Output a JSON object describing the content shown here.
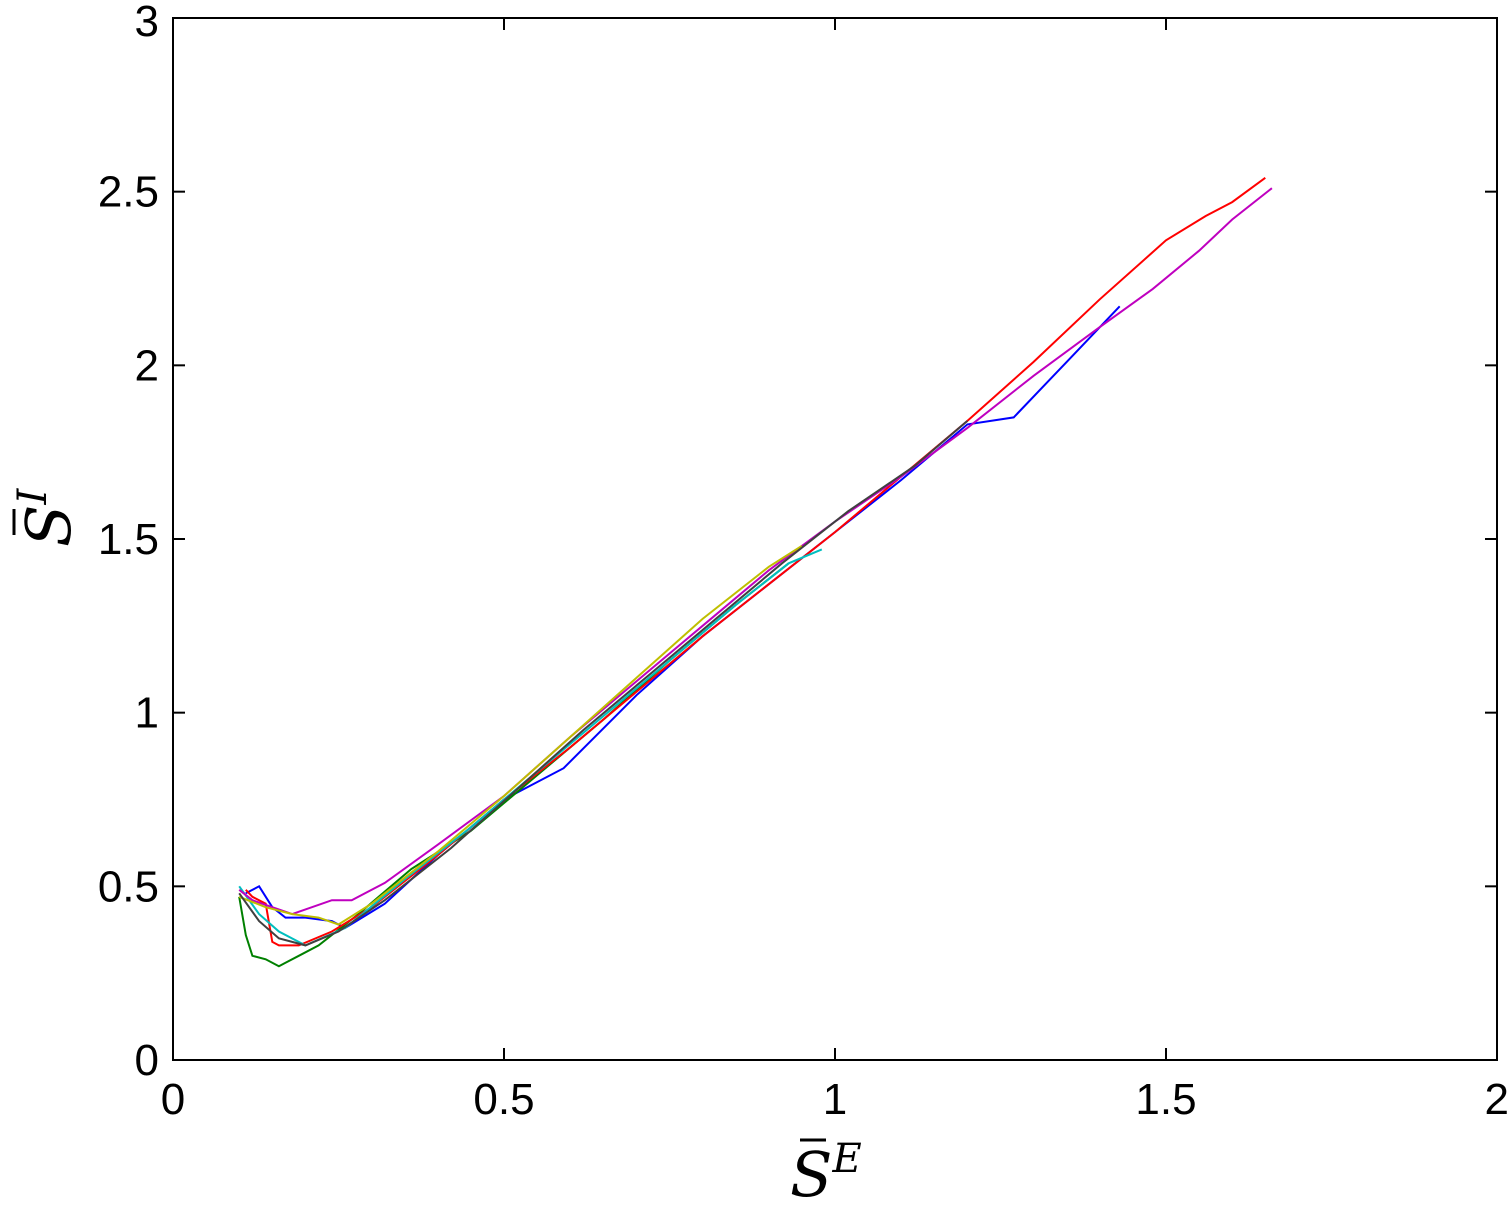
{
  "chart_data": {
    "type": "line",
    "xlabel": {
      "base": "S",
      "sup": "E"
    },
    "ylabel": {
      "base": "S",
      "sup": "I"
    },
    "xlim": [
      0,
      2
    ],
    "ylim": [
      0,
      3
    ],
    "xticks": [
      0,
      0.5,
      1,
      1.5,
      2
    ],
    "xtick_labels": [
      "0",
      "0.5",
      "1",
      "1.5",
      "2"
    ],
    "yticks": [
      0,
      0.5,
      1,
      1.5,
      2,
      2.5,
      3
    ],
    "ytick_labels": [
      "0",
      "0.5",
      "1",
      "1.5",
      "2",
      "2.5",
      "3"
    ],
    "grid": false,
    "legend": "none",
    "series": [
      {
        "color": "#0000ff",
        "x": [
          0.11,
          0.13,
          0.15,
          0.17,
          0.2,
          0.24,
          0.26,
          0.32,
          0.4,
          0.5,
          0.59,
          0.7,
          0.8,
          0.9,
          1.0,
          1.1,
          1.2,
          1.27,
          1.35,
          1.43
        ],
        "y": [
          0.48,
          0.5,
          0.44,
          0.41,
          0.41,
          0.4,
          0.38,
          0.45,
          0.59,
          0.75,
          0.84,
          1.05,
          1.22,
          1.37,
          1.52,
          1.67,
          1.83,
          1.85,
          2.01,
          2.17
        ]
      },
      {
        "color": "#008000",
        "x": [
          0.1,
          0.11,
          0.12,
          0.14,
          0.16,
          0.17,
          0.19,
          0.22,
          0.28,
          0.36,
          0.45,
          0.55,
          0.65,
          0.75,
          0.85,
          0.93
        ],
        "y": [
          0.47,
          0.36,
          0.3,
          0.29,
          0.27,
          0.28,
          0.3,
          0.33,
          0.42,
          0.55,
          0.66,
          0.82,
          0.98,
          1.15,
          1.31,
          1.43
        ]
      },
      {
        "color": "#ff0000",
        "x": [
          0.11,
          0.12,
          0.14,
          0.15,
          0.16,
          0.19,
          0.24,
          0.3,
          0.4,
          0.5,
          0.6,
          0.7,
          0.8,
          0.9,
          1.0,
          1.1,
          1.2,
          1.3,
          1.4,
          1.5,
          1.56,
          1.6,
          1.65
        ],
        "y": [
          0.49,
          0.47,
          0.45,
          0.34,
          0.33,
          0.33,
          0.37,
          0.44,
          0.59,
          0.75,
          0.9,
          1.06,
          1.22,
          1.37,
          1.52,
          1.68,
          1.84,
          2.01,
          2.19,
          2.36,
          2.43,
          2.47,
          2.54
        ]
      },
      {
        "color": "#00bfbf",
        "x": [
          0.1,
          0.13,
          0.16,
          0.2,
          0.26,
          0.35,
          0.45,
          0.55,
          0.65,
          0.75,
          0.85,
          0.93,
          0.98
        ],
        "y": [
          0.5,
          0.42,
          0.37,
          0.33,
          0.38,
          0.52,
          0.67,
          0.83,
          0.99,
          1.15,
          1.31,
          1.43,
          1.47
        ]
      },
      {
        "color": "#bf00bf",
        "x": [
          0.1,
          0.12,
          0.15,
          0.18,
          0.24,
          0.27,
          0.32,
          0.4,
          0.5,
          0.6,
          0.7,
          0.8,
          0.9,
          1.0,
          1.1,
          1.2,
          1.3,
          1.4,
          1.48,
          1.55,
          1.6,
          1.66
        ],
        "y": [
          0.49,
          0.46,
          0.44,
          0.42,
          0.46,
          0.46,
          0.51,
          0.62,
          0.76,
          0.93,
          1.09,
          1.25,
          1.41,
          1.55,
          1.68,
          1.82,
          1.97,
          2.11,
          2.22,
          2.33,
          2.42,
          2.51
        ]
      },
      {
        "color": "#bfbf00",
        "x": [
          0.1,
          0.14,
          0.18,
          0.22,
          0.25,
          0.3,
          0.4,
          0.5,
          0.6,
          0.7,
          0.8,
          0.9,
          0.95
        ],
        "y": [
          0.47,
          0.44,
          0.42,
          0.41,
          0.39,
          0.45,
          0.6,
          0.76,
          0.93,
          1.1,
          1.27,
          1.42,
          1.48
        ]
      },
      {
        "color": "#404040",
        "x": [
          0.1,
          0.13,
          0.16,
          0.2,
          0.25,
          0.32,
          0.42,
          0.52,
          0.62,
          0.72,
          0.82,
          0.92,
          1.02,
          1.12,
          1.2
        ],
        "y": [
          0.48,
          0.4,
          0.35,
          0.33,
          0.37,
          0.46,
          0.61,
          0.78,
          0.95,
          1.11,
          1.27,
          1.43,
          1.58,
          1.71,
          1.84
        ]
      }
    ]
  }
}
